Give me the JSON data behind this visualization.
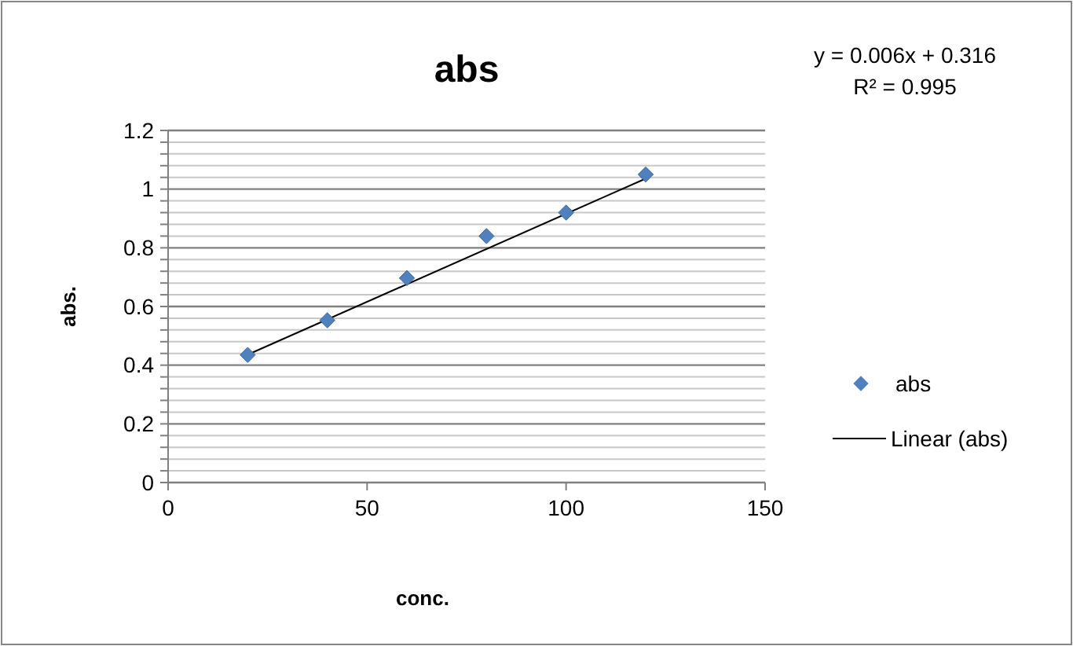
{
  "chart_data": {
    "type": "scatter",
    "title": "abs",
    "xlabel": "conc.",
    "ylabel": "abs.",
    "x": [
      20,
      40,
      60,
      80,
      100,
      120
    ],
    "series": [
      {
        "name": "abs",
        "color": "#4f81bd",
        "marker": "diamond",
        "values": [
          0.435,
          0.553,
          0.697,
          0.84,
          0.92,
          1.05
        ]
      },
      {
        "name": "Linear (abs)",
        "type": "line",
        "color": "#000000",
        "marker": "none",
        "line_style": "solid",
        "x": [
          20,
          120
        ],
        "values": [
          0.436,
          1.036
        ]
      }
    ],
    "annotations": [
      "y = 0.006x + 0.316",
      "R² = 0.995"
    ],
    "xlim": [
      0,
      150
    ],
    "xticks": [
      0,
      50,
      100,
      150
    ],
    "ylim": [
      0,
      1.2
    ],
    "yticks": [
      0,
      {
        "value": 0.04,
        "label": null
      },
      {
        "value": 0.08,
        "label": null
      },
      {
        "value": 0.12,
        "label": null
      },
      {
        "value": 0.16,
        "label": null
      },
      0.2,
      {
        "value": 0.24,
        "label": null
      },
      {
        "value": 0.28,
        "label": null
      },
      {
        "value": 0.32,
        "label": null
      },
      {
        "value": 0.36,
        "label": null
      },
      0.4,
      {
        "value": 0.44,
        "label": null
      },
      {
        "value": 0.48,
        "label": null
      },
      {
        "value": 0.52,
        "label": null
      },
      {
        "value": 0.56,
        "label": null
      },
      0.6,
      {
        "value": 0.64,
        "label": null
      },
      {
        "value": 0.68,
        "label": null
      },
      {
        "value": 0.72,
        "label": null
      },
      {
        "value": 0.76,
        "label": null
      },
      0.8,
      {
        "value": 0.84,
        "label": null
      },
      {
        "value": 0.88,
        "label": null
      },
      {
        "value": 0.92,
        "label": null
      },
      {
        "value": 0.96,
        "label": null
      },
      1,
      {
        "value": 1.04,
        "label": null
      },
      {
        "value": 1.08,
        "label": null
      },
      {
        "value": 1.12,
        "label": null
      },
      {
        "value": 1.16,
        "label": null
      },
      1.2
    ],
    "grid": "y",
    "legend": "right"
  }
}
